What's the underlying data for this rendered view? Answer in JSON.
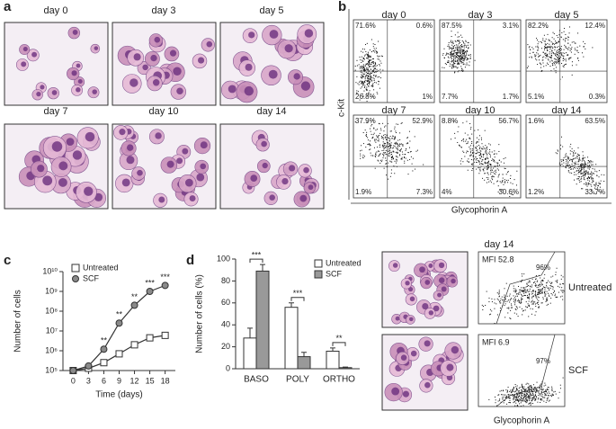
{
  "panel_labels": [
    "a",
    "b",
    "c",
    "d"
  ],
  "micrographs": {
    "days": [
      "day 0",
      "day 3",
      "day 5",
      "day 7",
      "day 10",
      "day 14"
    ]
  },
  "flow": {
    "y_label": "c-Kit",
    "x_label": "Glycophorin A",
    "plots": [
      {
        "day": "day 0",
        "quadrants": [
          "71.6%",
          "0.6%",
          "26.8%",
          "1%"
        ]
      },
      {
        "day": "day 3",
        "quadrants": [
          "87.5%",
          "3.1%",
          "7.7%",
          "1.7%"
        ]
      },
      {
        "day": "day 5",
        "quadrants": [
          "82.2%",
          "12.4%",
          "5.1%",
          "0.3%"
        ]
      },
      {
        "day": "day 7",
        "quadrants": [
          "37.9%",
          "52.9%",
          "1.9%",
          "7.3%"
        ]
      },
      {
        "day": "day 10",
        "quadrants": [
          "8.8%",
          "56.7%",
          "4%",
          "30.6%"
        ]
      },
      {
        "day": "day 14",
        "quadrants": [
          "1.6%",
          "63.5%",
          "1.2%",
          "33.7%"
        ]
      }
    ]
  },
  "chart_data": [
    {
      "type": "line",
      "x_label": "Time (days)",
      "y_label": "Number of cells",
      "log_y": true,
      "x": [
        0,
        3,
        6,
        9,
        12,
        15,
        18
      ],
      "xlim": [
        -2,
        20
      ],
      "xticks": [
        0,
        3,
        6,
        9,
        12,
        15,
        18
      ],
      "ylim": [
        100000,
        10000000000
      ],
      "yticks": [
        {
          "value": 100000,
          "label": "10⁵"
        },
        {
          "value": 1000000,
          "label": "10⁶"
        },
        {
          "value": 10000000,
          "label": "10⁷"
        },
        {
          "value": 100000000,
          "label": "10⁸"
        },
        {
          "value": 1000000000,
          "label": "10⁹"
        },
        {
          "value": 10000000000,
          "label": "10¹⁰"
        }
      ],
      "series": [
        {
          "name": "Untreated",
          "color": "#ffffff",
          "marker": "square",
          "values": [
            100000,
            130000,
            250000,
            700000,
            2000000,
            4500000,
            6000000
          ]
        },
        {
          "name": "SCF",
          "color": "#8a8a8a",
          "marker": "circle",
          "values": [
            100000,
            170000,
            1200000,
            25000000,
            200000000,
            1000000000,
            2000000000
          ]
        }
      ],
      "annotations": [
        {
          "x": 6,
          "text": "**"
        },
        {
          "x": 9,
          "text": "**"
        },
        {
          "x": 12,
          "text": "**"
        },
        {
          "x": 15,
          "text": "***"
        },
        {
          "x": 18,
          "text": "***"
        }
      ]
    },
    {
      "type": "bar",
      "y_label": "Number of cells (%)",
      "categories": [
        "BASO",
        "POLY",
        "ORTHO"
      ],
      "ylim": [
        0,
        100
      ],
      "yticks": [
        0,
        20,
        40,
        60,
        80,
        100
      ],
      "series": [
        {
          "name": "Untreated",
          "color": "#ffffff",
          "values": [
            28,
            56,
            16
          ],
          "errors": [
            9,
            4,
            3
          ]
        },
        {
          "name": "SCF",
          "color": "#999999",
          "values": [
            89,
            11,
            1
          ],
          "errors": [
            6,
            4,
            0.5
          ]
        }
      ],
      "annotations": [
        "***",
        "***",
        "**"
      ]
    }
  ],
  "day14": {
    "title": "day 14",
    "x_label": "Glycophorin A",
    "rows": [
      {
        "mfi": "MFI 52.8",
        "gate": "96%",
        "label": "Untreated"
      },
      {
        "mfi": "MFI 6.9",
        "gate": "97%",
        "label": "SCF"
      }
    ]
  }
}
